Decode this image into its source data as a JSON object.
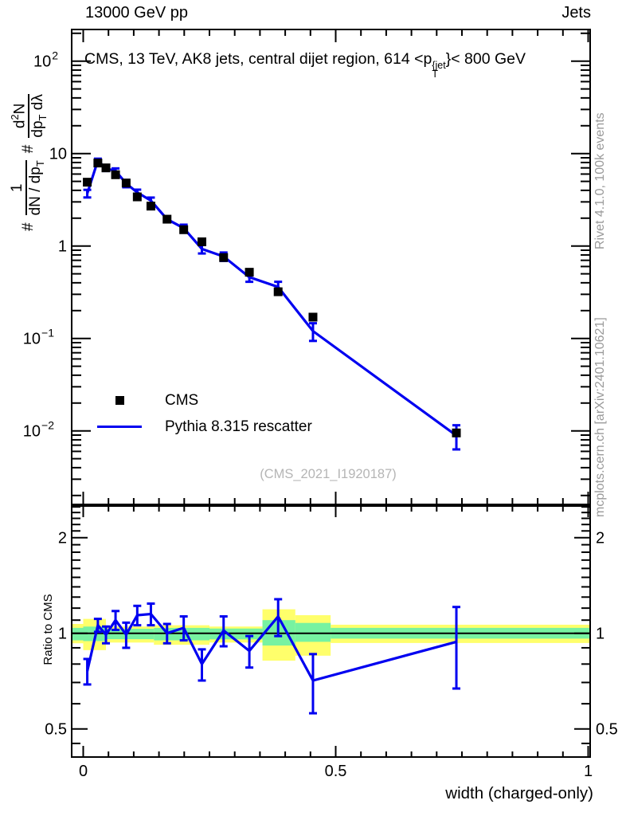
{
  "header": {
    "left": "13000 GeV pp",
    "right": "Jets"
  },
  "panel_title": {
    "prefix": "CMS, 13 TeV, AK8 jets, central dijet region, 614 <p",
    "sup": "{jet",
    "sub": "T",
    "suffix": "}< 800 GeV"
  },
  "ylabel_main": {
    "hash1": "#",
    "frac1_num": "1",
    "frac1_den": "dN / dp",
    "frac1_den_sub": "T",
    "hash2": "#",
    "frac2_num_d": "d",
    "frac2_num_sup": "2",
    "frac2_num_N": "N",
    "frac2_den_dp": "dp",
    "frac2_den_sub": "T",
    "frac2_den_dl": " dλ"
  },
  "ratio_ylabel": "Ratio to CMS",
  "xlabel": "width (charged-only)",
  "watermark": "(CMS_2021_I1920187)",
  "right_margin": {
    "top": "Rivet 4.1.0,  100k events",
    "bottom": "mcplots.cern.ch [arXiv:2401.10621]"
  },
  "legend": {
    "cms_label": "CMS",
    "mc_label": "Pythia 8.315 rescatter"
  },
  "colors": {
    "mc_blue": "#0000f0",
    "data_black": "#000000",
    "band_yellow": "#ffff6b",
    "band_green": "#77f2a1",
    "gray_text": "#9a9a9a",
    "watermark_gray": "#b5b5b5"
  },
  "chart_data": {
    "type": "line",
    "title": "CMS, 13 TeV, AK8 jets, central dijet region, 614 < pT{jet} < 800 GeV",
    "xlabel": "width (charged-only)",
    "ylabel": "# 1/(dN/dpT) # d2N/(dpT dlambda)",
    "ratio_ylabel": "Ratio to CMS",
    "legend_position": "left-middle",
    "grid": false,
    "x_range": [
      -0.023,
      1.004
    ],
    "y_range_main_log": [
      0.0017,
      220
    ],
    "y_range_ratio_log": [
      0.408,
      2.59
    ],
    "x_ticks_major": [
      {
        "v": 0,
        "label": "0"
      },
      {
        "v": 0.5,
        "label": "0.5"
      },
      {
        "v": 1,
        "label": "1"
      }
    ],
    "x_minor_step": 0.05,
    "y_ticks_main": [
      {
        "v": 100,
        "mant": "10",
        "exp": "2"
      },
      {
        "v": 10,
        "mant": "10",
        "exp": ""
      },
      {
        "v": 1,
        "mant": "1",
        "exp": ""
      },
      {
        "v": 0.1,
        "mant": "10",
        "exp": "−1"
      },
      {
        "v": 0.01,
        "mant": "10",
        "exp": "−2"
      }
    ],
    "y_ticks_ratio": [
      {
        "v": 2,
        "label": "2"
      },
      {
        "v": 1,
        "label": "1"
      },
      {
        "v": 0.5,
        "label": "0.5"
      }
    ],
    "y_minor_ratio": [
      0.45,
      0.6,
      0.7,
      0.8,
      0.9,
      1.1,
      1.2,
      1.3,
      1.4,
      1.5,
      1.6,
      1.7,
      1.8,
      1.9,
      2.1,
      2.2,
      2.3,
      2.4,
      2.5
    ],
    "x": [
      0.008,
      0.029,
      0.045,
      0.064,
      0.085,
      0.107,
      0.134,
      0.166,
      0.199,
      0.235,
      0.278,
      0.329,
      0.386,
      0.455,
      0.739
    ],
    "series": [
      {
        "name": "CMS",
        "type": "scatter",
        "marker": "square",
        "color": "#000000",
        "y": [
          4.9,
          7.9,
          7.0,
          5.9,
          4.8,
          3.4,
          2.7,
          1.95,
          1.5,
          1.11,
          0.75,
          0.52,
          0.32,
          0.17,
          0.0095
        ]
      },
      {
        "name": "Pythia 8.315 rescatter",
        "type": "line",
        "color": "#0000f0",
        "y": [
          3.7,
          8.4,
          6.9,
          6.5,
          4.75,
          3.8,
          3.1,
          1.95,
          1.56,
          0.93,
          0.77,
          0.46,
          0.36,
          0.12,
          0.0089
        ],
        "yerr": [
          0.35,
          0.4,
          0.42,
          0.41,
          0.43,
          0.27,
          0.24,
          0.14,
          0.14,
          0.1,
          0.08,
          0.05,
          0.05,
          0.026,
          0.0026
        ]
      }
    ],
    "ratio": {
      "name": "Pythia / CMS",
      "color": "#0000f0",
      "ref_line": 1,
      "y": [
        0.76,
        1.06,
        0.99,
        1.1,
        0.99,
        1.14,
        1.15,
        1.0,
        1.04,
        0.8,
        1.02,
        0.88,
        1.13,
        0.71,
        0.94
      ],
      "yerr": [
        0.07,
        0.05,
        0.06,
        0.075,
        0.09,
        0.08,
        0.09,
        0.07,
        0.09,
        0.09,
        0.11,
        0.1,
        0.15,
        0.15,
        0.27
      ]
    },
    "uncertainty_bands": [
      {
        "x0": -0.023,
        "x1": 0.0,
        "yellow": [
          0.93,
          1.07
        ],
        "green": [
          0.95,
          1.04
        ]
      },
      {
        "x0": 0.0,
        "x1": 0.045,
        "yellow": [
          0.885,
          1.11
        ],
        "green": [
          0.945,
          1.05
        ]
      },
      {
        "x0": 0.045,
        "x1": 0.14,
        "yellow": [
          0.935,
          1.05
        ],
        "green": [
          0.958,
          1.033
        ]
      },
      {
        "x0": 0.14,
        "x1": 0.25,
        "yellow": [
          0.92,
          1.06
        ],
        "green": [
          0.95,
          1.04
        ]
      },
      {
        "x0": 0.25,
        "x1": 0.355,
        "yellow": [
          0.935,
          1.05
        ],
        "green": [
          0.957,
          1.035
        ]
      },
      {
        "x0": 0.355,
        "x1": 0.42,
        "yellow": [
          0.82,
          1.19
        ],
        "green": [
          0.915,
          1.1
        ]
      },
      {
        "x0": 0.42,
        "x1": 0.49,
        "yellow": [
          0.85,
          1.14
        ],
        "green": [
          0.94,
          1.078
        ]
      },
      {
        "x0": 0.49,
        "x1": 1.004,
        "yellow": [
          0.932,
          1.064
        ],
        "green": [
          0.962,
          1.04
        ]
      }
    ]
  }
}
